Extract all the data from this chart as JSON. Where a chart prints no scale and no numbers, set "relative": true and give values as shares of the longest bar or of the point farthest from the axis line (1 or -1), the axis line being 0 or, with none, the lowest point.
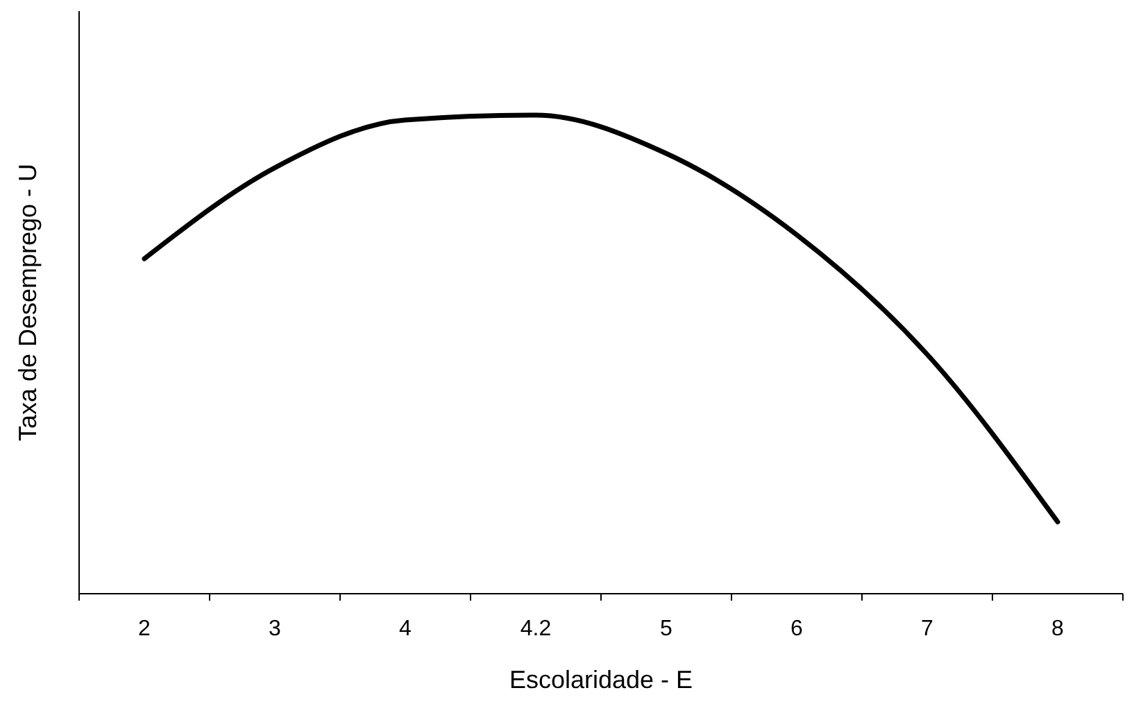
{
  "chart_data": {
    "type": "line",
    "xlabel": "Escolaridade - E",
    "ylabel": "Taxa de Desemprego - U",
    "categories": [
      "2",
      "3",
      "4",
      "4.2",
      "5",
      "6",
      "7",
      "8"
    ],
    "relative": true,
    "series": [
      {
        "color": "#000000",
        "values": [
          0.7,
          0.89,
          0.99,
          1,
          0.92,
          0.75,
          0.5,
          0.15
        ]
      }
    ],
    "marker": "none",
    "line_style": "solid"
  }
}
